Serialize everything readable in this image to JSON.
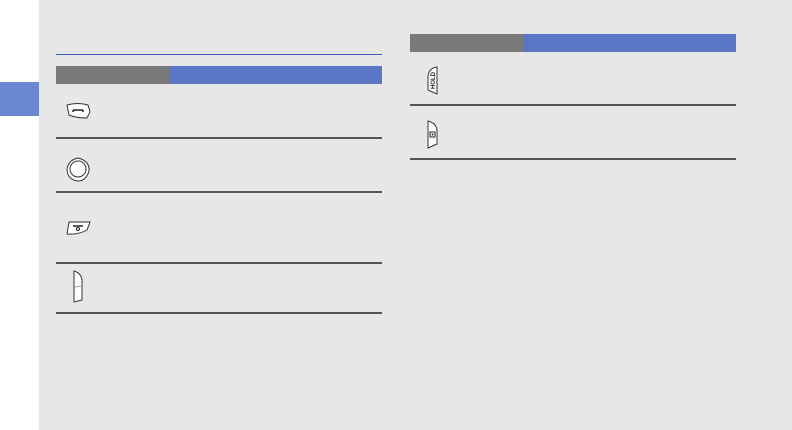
{
  "colors": {
    "page_bg": "#e7e7e7",
    "accent_blue": "#5a75c4",
    "side_tab": "#6a87d0",
    "header_gray": "#7a7a7a",
    "title_rule": "#3a5cc0",
    "divider": "#555555"
  },
  "left_table": {
    "keys": [
      {
        "icon": "call-key-icon"
      },
      {
        "icon": "confirm-key-icon"
      },
      {
        "icon": "end-power-key-icon"
      },
      {
        "icon": "volume-key-icon"
      }
    ]
  },
  "right_table": {
    "keys": [
      {
        "icon": "hold-key-icon",
        "lettering": "HOLD"
      },
      {
        "icon": "camera-key-icon"
      }
    ]
  }
}
